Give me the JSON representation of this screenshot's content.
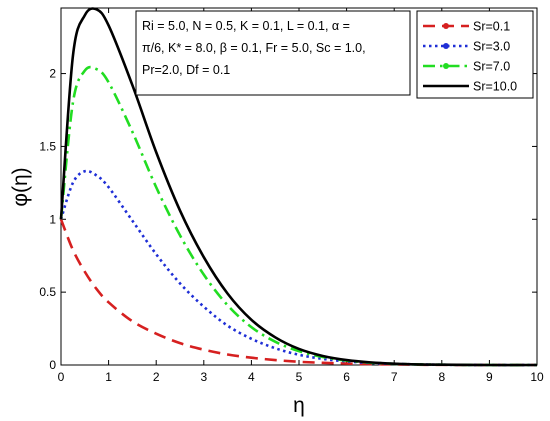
{
  "chart_data": {
    "type": "line",
    "title": "",
    "xlabel": "η",
    "ylabel": "φ(η)",
    "xlim": [
      0,
      10
    ],
    "ylim": [
      0,
      2.45
    ],
    "xticks": [
      "0",
      "1",
      "2",
      "3",
      "4",
      "5",
      "6",
      "7",
      "8",
      "9",
      "10"
    ],
    "yticks": [
      "0",
      "0.5",
      "1",
      "1.5",
      "2"
    ],
    "grid": false,
    "legend_position": "top-right",
    "annotation": {
      "lines": [
        "Ri = 5.0, N = 0.5, K = 0.1, L = 0.1, α =",
        "π/6, K* = 8.0, β = 0.1, Fr = 5.0, Sc = 1.0,",
        "Pr=2.0, Df = 0.1"
      ]
    },
    "x": [
      0,
      0.25,
      0.5,
      0.75,
      1,
      1.5,
      2,
      2.5,
      3,
      3.5,
      4,
      4.5,
      5,
      5.5,
      6,
      6.5,
      7,
      7.5,
      8,
      9,
      10
    ],
    "series": [
      {
        "name": "Sr=0.1",
        "color": "#d62020",
        "style": "dashed",
        "values": [
          1.0,
          0.79,
          0.64,
          0.52,
          0.43,
          0.3,
          0.215,
          0.15,
          0.105,
          0.072,
          0.05,
          0.034,
          0.022,
          0.015,
          0.01,
          0.006,
          0.004,
          0.002,
          0.001,
          0.0,
          0.0
        ]
      },
      {
        "name": "Sr=3.0",
        "color": "#1f2fd6",
        "style": "dotted",
        "values": [
          1.0,
          1.25,
          1.33,
          1.3,
          1.22,
          0.99,
          0.76,
          0.56,
          0.4,
          0.27,
          0.18,
          0.115,
          0.07,
          0.042,
          0.025,
          0.014,
          0.008,
          0.004,
          0.002,
          0.0,
          0.0
        ]
      },
      {
        "name": "Sr=7.0",
        "color": "#22dd22",
        "style": "dashdot",
        "values": [
          1.0,
          1.8,
          2.02,
          2.03,
          1.94,
          1.6,
          1.22,
          0.89,
          0.62,
          0.41,
          0.26,
          0.16,
          0.095,
          0.055,
          0.03,
          0.016,
          0.008,
          0.004,
          0.002,
          0.0,
          0.0
        ]
      },
      {
        "name": "Sr=10.0",
        "color": "#000000",
        "style": "solid",
        "values": [
          1.0,
          2.12,
          2.4,
          2.44,
          2.33,
          1.92,
          1.46,
          1.06,
          0.74,
          0.49,
          0.31,
          0.19,
          0.11,
          0.062,
          0.034,
          0.018,
          0.009,
          0.004,
          0.002,
          0.0,
          0.0
        ]
      }
    ]
  }
}
